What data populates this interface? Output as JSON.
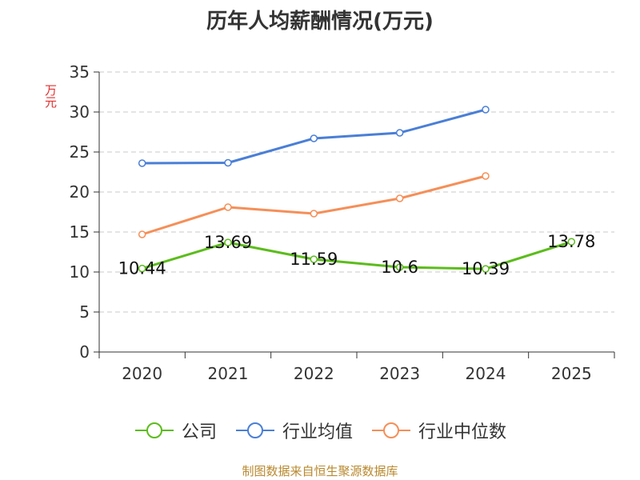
{
  "colors": {
    "company": "#5cbc1c",
    "industry_avg": "#4a7fd6",
    "industry_median": "#f58f58",
    "axis_text": "#333333",
    "grid": "#c8c8c8",
    "ylabel": "#e03030",
    "source": "#b8892f"
  },
  "legend": [
    {
      "name": "公司",
      "color_key": "company"
    },
    {
      "name": "行业均值",
      "color_key": "industry_avg"
    },
    {
      "name": "行业中位数",
      "color_key": "industry_median"
    }
  ],
  "source_text": "制图数据来自恒生聚源数据库",
  "chart_data": {
    "type": "line",
    "title": "历年人均薪酬情况(万元)",
    "xlabel": "",
    "ylabel": "万元",
    "ylim": [
      0,
      35
    ],
    "yticks": [
      0,
      5,
      10,
      15,
      20,
      25,
      30,
      35
    ],
    "grid": true,
    "legend_position": "bottom",
    "categories": [
      "2020",
      "2021",
      "2022",
      "2023",
      "2024",
      "2025"
    ],
    "series": [
      {
        "name": "公司",
        "key": "company",
        "values": [
          10.44,
          13.69,
          11.59,
          10.6,
          10.39,
          13.78
        ],
        "show_labels": true,
        "labels": [
          "10.44",
          "13.69",
          "11.59",
          "10.6",
          "10.39",
          "13.78"
        ]
      },
      {
        "name": "行业均值",
        "key": "industry_avg",
        "values": [
          23.6,
          23.65,
          26.7,
          27.4,
          30.3,
          null
        ],
        "show_labels": false
      },
      {
        "name": "行业中位数",
        "key": "industry_median",
        "values": [
          14.7,
          18.1,
          17.3,
          19.2,
          22.0,
          null
        ],
        "show_labels": false
      }
    ]
  }
}
